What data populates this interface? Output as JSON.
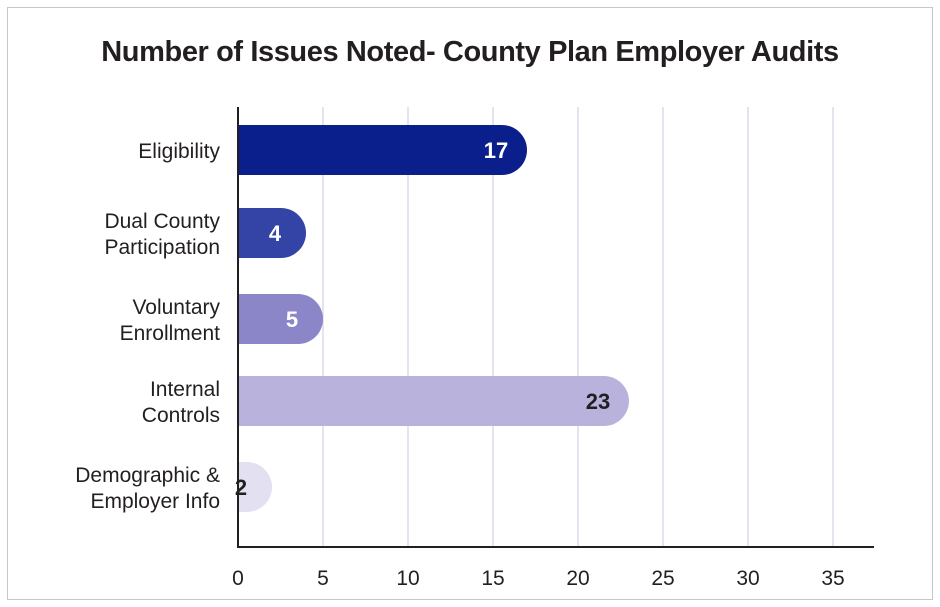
{
  "title": "Number of Issues Noted- County Plan Employer Audits",
  "chart_data": {
    "type": "bar",
    "orientation": "horizontal",
    "title": "Number of Issues Noted- County Plan Employer Audits",
    "categories": [
      "Eligibility",
      "Dual County Participation",
      "Voluntary Enrollment",
      "Internal Controls",
      "Demographic & Employer Info"
    ],
    "category_lines": [
      [
        "Eligibility"
      ],
      [
        "Dual County",
        "Participation"
      ],
      [
        "Voluntary",
        "Enrollment"
      ],
      [
        "Internal",
        "Controls"
      ],
      [
        "Demographic &",
        "Employer Info"
      ]
    ],
    "values": [
      17,
      4,
      5,
      23,
      2
    ],
    "value_labels": [
      "17",
      "4",
      "5",
      "23",
      "2"
    ],
    "bar_colors": [
      "#0b1f8c",
      "#3443a6",
      "#8b86c8",
      "#b8b2dd",
      "#e3e0f1"
    ],
    "label_colors": [
      "#ffffff",
      "#ffffff",
      "#ffffff",
      "#231f20",
      "#231f20"
    ],
    "x_ticks": [
      0,
      5,
      10,
      15,
      20,
      25,
      30,
      35
    ],
    "xlim": [
      0,
      37
    ],
    "grid": true,
    "grid_color": "#c9c8e0",
    "axis_color": "#231f20",
    "xlabel": "",
    "ylabel": ""
  }
}
